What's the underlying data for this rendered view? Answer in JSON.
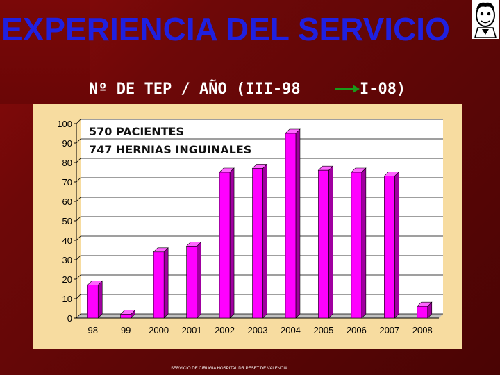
{
  "slide": {
    "title": "EXPERIENCIA DEL SERVICIO",
    "subtitle_left": "Nº DE  TEP / AÑO (III-98",
    "subtitle_right": "I-08)",
    "footer": "SERVICIO DE CIRUGIA HOSPITAL DR PESET DE VALENCIA",
    "logo_icon": "cartoon-face-logo-icon",
    "arrow_icon": "right-arrow-icon"
  },
  "colors": {
    "background": "#6e0808",
    "title": "#2020e0",
    "panel": "#f7dca0",
    "bar": "#ff00ff",
    "bar_side": "#a000a0",
    "bar_top": "#ff66ff"
  },
  "chart_data": {
    "type": "bar",
    "title": "",
    "xlabel": "",
    "ylabel": "",
    "categories": [
      "98",
      "99",
      "2000",
      "2001",
      "2002",
      "2003",
      "2004",
      "2005",
      "2006",
      "2007",
      "2008"
    ],
    "values": [
      17,
      2,
      34,
      37,
      75,
      77,
      95,
      76,
      75,
      73,
      6
    ],
    "ylim": [
      0,
      100
    ],
    "yticks": [
      0,
      10,
      20,
      30,
      40,
      50,
      60,
      70,
      80,
      90,
      100
    ],
    "grid": true,
    "annotations": [
      "570 PACIENTES",
      "747 HERNIAS INGUINALES"
    ]
  }
}
